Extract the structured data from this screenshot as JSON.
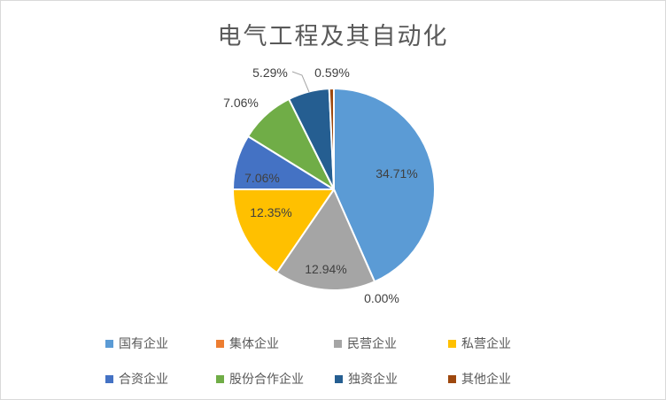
{
  "title": "电气工程及其自动化",
  "chart_data": {
    "type": "pie",
    "title": "电气工程及其自动化",
    "categories": [
      "国有企业",
      "集体企业",
      "民营企业",
      "私营企业",
      "合资企业",
      "股份合作企业",
      "独资企业",
      "其他企业"
    ],
    "values": [
      34.71,
      0.0,
      12.94,
      12.35,
      7.06,
      7.06,
      5.29,
      0.59
    ],
    "labels": [
      "34.71%",
      "0.00%",
      "12.94%",
      "12.35%",
      "7.06%",
      "7.06%",
      "5.29%",
      "0.59%"
    ],
    "colors": [
      "#5B9BD5",
      "#ED7D31",
      "#A5A5A5",
      "#FFC000",
      "#4472C4",
      "#70AD47",
      "#255E91",
      "#9E480E"
    ],
    "legend_position": "bottom",
    "start_angle_deg": 0,
    "direction": "clockwise",
    "slice_border_color": "#FFFFFF",
    "leader_line_color": "#A6A6A6",
    "label_color": "#404040",
    "title_color": "#595959",
    "legend_text_color": "#595959"
  }
}
